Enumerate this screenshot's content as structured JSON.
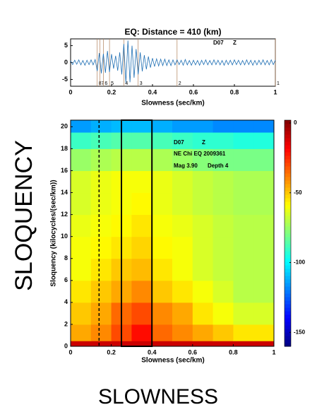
{
  "chart_data": [
    {
      "type": "line",
      "title": "EQ: Distance = 410 (km)",
      "xlabel": "Slowness (sec/km)",
      "station": "D07",
      "component": "Z",
      "color": "#1f6fb4",
      "x": [
        0,
        0.01,
        0.02,
        0.03,
        0.04,
        0.05,
        0.06,
        0.07,
        0.08,
        0.09,
        0.1,
        0.11,
        0.12,
        0.13,
        0.14,
        0.15,
        0.16,
        0.17,
        0.18,
        0.19,
        0.2,
        0.21,
        0.22,
        0.23,
        0.24,
        0.25,
        0.26,
        0.27,
        0.28,
        0.29,
        0.3,
        0.31,
        0.32,
        0.33,
        0.34,
        0.35,
        0.36,
        0.37,
        0.38,
        0.39,
        0.4,
        0.41,
        0.42,
        0.43,
        0.44,
        0.45,
        0.46,
        0.47,
        0.48,
        0.49,
        0.5,
        0.51,
        0.52,
        0.53,
        0.54,
        0.55,
        0.56,
        0.57,
        0.58,
        0.59,
        0.6,
        0.61,
        0.62,
        0.63,
        0.64,
        0.65,
        0.66,
        0.67,
        0.68,
        0.69,
        0.7,
        0.71,
        0.72,
        0.73,
        0.74,
        0.75,
        0.76,
        0.77,
        0.78,
        0.79,
        0.8,
        0.81,
        0.82,
        0.83,
        0.84,
        0.85,
        0.86,
        0.87,
        0.88,
        0.89,
        0.9,
        0.91,
        0.92,
        0.93,
        0.94,
        0.95,
        0.96,
        0.97,
        0.98,
        0.99,
        1
      ],
      "values": [
        0.5,
        -0.6,
        0.7,
        -0.5,
        0.8,
        -0.7,
        0.6,
        -0.8,
        0.7,
        -0.6,
        0.8,
        -0.7,
        0.9,
        -2.5,
        2.8,
        -3.2,
        2.6,
        -3,
        3.4,
        -2.8,
        2.5,
        -1.8,
        2,
        -2.4,
        3,
        -3.5,
        5.5,
        -6,
        6.5,
        -5.8,
        5,
        -4.5,
        4,
        -3.5,
        3,
        -2.6,
        2.2,
        -2,
        1.8,
        -1.5,
        1.3,
        -1.2,
        1.1,
        -1,
        1,
        -0.9,
        1,
        -0.9,
        0.8,
        -0.9,
        0.8,
        -0.7,
        0.8,
        -0.6,
        0.7,
        -0.8,
        0.9,
        -0.7,
        0.6,
        -0.8,
        0.7,
        -0.7,
        0.6,
        -0.8,
        0.7,
        -0.6,
        0.8,
        -0.7,
        0.6,
        -0.7,
        0.8,
        -0.6,
        0.7,
        -0.7,
        0.6,
        -0.8,
        0.7,
        -0.6,
        0.7,
        -0.7,
        0.8,
        -0.6,
        0.7,
        -0.7,
        0.6,
        -0.7,
        0.8,
        -0.6,
        0.7,
        -0.8,
        0.6,
        -0.7,
        0.7,
        -0.6,
        0.8,
        -0.7,
        0.6,
        -0.7,
        0.8,
        -0.6,
        0.7
      ],
      "markers": [
        {
          "label": "8",
          "x": 0.13
        },
        {
          "label": "7",
          "x": 0.143
        },
        {
          "label": "6",
          "x": 0.16
        },
        {
          "label": "5",
          "x": 0.19
        },
        {
          "label": "4",
          "x": 0.26
        },
        {
          "label": "3",
          "x": 0.33
        },
        {
          "label": "2",
          "x": 0.52
        },
        {
          "label": "1",
          "x": 1
        }
      ],
      "xlim": [
        0,
        1
      ],
      "ylim": [
        -7,
        7
      ],
      "xticks": [
        0,
        0.2,
        0.4,
        0.6,
        0.8,
        1
      ],
      "yticks": [
        -5,
        0,
        5
      ]
    },
    {
      "type": "heatmap",
      "xlabel": "Slowness (sec/km)",
      "ylabel": "Sloquency (kilocycles/(sec/km))",
      "annotations": [
        "D07",
        "Z",
        "NE Chi EQ 2009361",
        "Mag 3.90",
        "Depth 4"
      ],
      "colormap": "jet",
      "xbins": [
        0,
        0.1,
        0.2,
        0.3,
        0.4,
        0.5,
        0.6,
        0.7,
        0.8,
        0.9,
        1
      ],
      "ybins": [
        0,
        0.5,
        2,
        4,
        6,
        8,
        10,
        12,
        14,
        16,
        18,
        19.5,
        20.6
      ],
      "z": [
        [
          -10,
          -10,
          -10,
          -10,
          -10,
          -10,
          -10,
          -10,
          -10,
          -10
        ],
        [
          -45,
          -40,
          -30,
          -20,
          -35,
          -40,
          -45,
          -50,
          -55,
          -55
        ],
        [
          -50,
          -45,
          -35,
          -30,
          -40,
          -45,
          -55,
          -60,
          -65,
          -65
        ],
        [
          -55,
          -50,
          -45,
          -40,
          -50,
          -55,
          -60,
          -65,
          -70,
          -70
        ],
        [
          -60,
          -55,
          -50,
          -48,
          -55,
          -60,
          -65,
          -68,
          -70,
          -70
        ],
        [
          -60,
          -58,
          -55,
          -52,
          -58,
          -60,
          -65,
          -68,
          -70,
          -70
        ],
        [
          -62,
          -60,
          -58,
          -55,
          -60,
          -62,
          -65,
          -68,
          -70,
          -70
        ],
        [
          -65,
          -62,
          -60,
          -58,
          -62,
          -65,
          -68,
          -70,
          -72,
          -72
        ],
        [
          -65,
          -62,
          -60,
          -60,
          -62,
          -65,
          -68,
          -70,
          -72,
          -72
        ],
        [
          -75,
          -72,
          -70,
          -70,
          -72,
          -75,
          -78,
          -80,
          -80,
          -80
        ],
        [
          -90,
          -88,
          -86,
          -86,
          -88,
          -90,
          -92,
          -92,
          -94,
          -94
        ],
        [
          -115,
          -112,
          -110,
          -110,
          -112,
          -115,
          -115,
          -118,
          -118,
          -118
        ]
      ],
      "dashed_line_x": 0.14,
      "box_x": [
        0.25,
        0.4
      ],
      "xlim": [
        0,
        1
      ],
      "ylim": [
        0,
        20.6
      ],
      "xticks": [
        0,
        0.2,
        0.4,
        0.6,
        0.8,
        1
      ],
      "yticks": [
        0,
        2,
        4,
        6,
        8,
        10,
        12,
        14,
        16,
        18,
        20
      ],
      "clim": [
        -160,
        2
      ],
      "cticks": [
        0,
        -50,
        -100,
        -150
      ]
    }
  ],
  "side_label": "SLOQUENCY",
  "bottom_label": "SLOWNESS"
}
